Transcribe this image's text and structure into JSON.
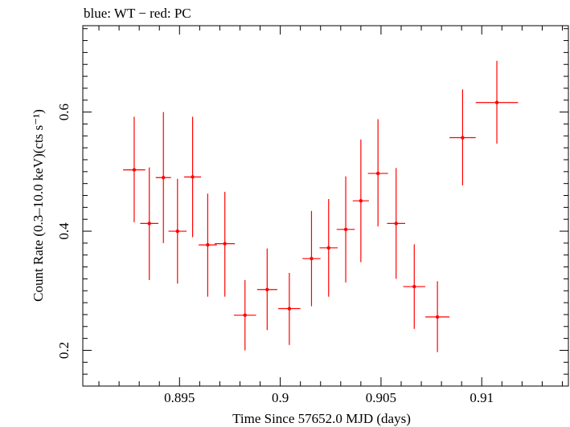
{
  "chart_data": {
    "type": "scatter",
    "title": "blue: WT − red: PC",
    "xlabel": "Time Since 57652.0 MJD (days)",
    "ylabel": "Count Rate (0.3–10.0 keV)(cts s⁻¹)",
    "xlim": [
      0.8902,
      0.9143
    ],
    "ylim": [
      0.14,
      0.745
    ],
    "x_ticks": [
      {
        "value": 0.895,
        "label": "0.895"
      },
      {
        "value": 0.9,
        "label": "0.9"
      },
      {
        "value": 0.905,
        "label": "0.905"
      },
      {
        "value": 0.91,
        "label": "0.91"
      }
    ],
    "y_ticks": [
      {
        "value": 0.2,
        "label": "0.2"
      },
      {
        "value": 0.4,
        "label": "0.4"
      },
      {
        "value": 0.6,
        "label": "0.6"
      }
    ],
    "grid": false,
    "series": [
      {
        "color": "#ff0000",
        "points": [
          {
            "x": 0.89275,
            "xerr": 0.00055,
            "y": 0.503,
            "ylo": 0.415,
            "yhi": 0.592
          },
          {
            "x": 0.8935,
            "xerr": 0.00045,
            "y": 0.413,
            "ylo": 0.318,
            "yhi": 0.507
          },
          {
            "x": 0.8942,
            "xerr": 0.00038,
            "y": 0.49,
            "ylo": 0.38,
            "yhi": 0.6
          },
          {
            "x": 0.8949,
            "xerr": 0.00045,
            "y": 0.4,
            "ylo": 0.312,
            "yhi": 0.488
          },
          {
            "x": 0.89565,
            "xerr": 0.00042,
            "y": 0.491,
            "ylo": 0.39,
            "yhi": 0.592
          },
          {
            "x": 0.8964,
            "xerr": 0.00045,
            "y": 0.377,
            "ylo": 0.29,
            "yhi": 0.463
          },
          {
            "x": 0.89725,
            "xerr": 0.0005,
            "y": 0.379,
            "ylo": 0.29,
            "yhi": 0.466
          },
          {
            "x": 0.89825,
            "xerr": 0.00055,
            "y": 0.259,
            "ylo": 0.2,
            "yhi": 0.318
          },
          {
            "x": 0.89935,
            "xerr": 0.0005,
            "y": 0.302,
            "ylo": 0.234,
            "yhi": 0.371
          },
          {
            "x": 0.90045,
            "xerr": 0.00055,
            "y": 0.27,
            "ylo": 0.209,
            "yhi": 0.33
          },
          {
            "x": 0.90155,
            "xerr": 0.00045,
            "y": 0.354,
            "ylo": 0.274,
            "yhi": 0.434
          },
          {
            "x": 0.9024,
            "xerr": 0.00045,
            "y": 0.372,
            "ylo": 0.29,
            "yhi": 0.454
          },
          {
            "x": 0.90325,
            "xerr": 0.00045,
            "y": 0.403,
            "ylo": 0.314,
            "yhi": 0.492
          },
          {
            "x": 0.904,
            "xerr": 0.0004,
            "y": 0.451,
            "ylo": 0.348,
            "yhi": 0.554
          },
          {
            "x": 0.90485,
            "xerr": 0.0005,
            "y": 0.497,
            "ylo": 0.408,
            "yhi": 0.588
          },
          {
            "x": 0.90575,
            "xerr": 0.00045,
            "y": 0.413,
            "ylo": 0.32,
            "yhi": 0.506
          },
          {
            "x": 0.90665,
            "xerr": 0.00055,
            "y": 0.307,
            "ylo": 0.236,
            "yhi": 0.378
          },
          {
            "x": 0.9078,
            "xerr": 0.0006,
            "y": 0.256,
            "ylo": 0.197,
            "yhi": 0.316
          },
          {
            "x": 0.90905,
            "xerr": 0.00065,
            "y": 0.557,
            "ylo": 0.477,
            "yhi": 0.638
          },
          {
            "x": 0.91075,
            "xerr": 0.00105,
            "y": 0.616,
            "ylo": 0.547,
            "yhi": 0.686
          }
        ]
      }
    ]
  }
}
